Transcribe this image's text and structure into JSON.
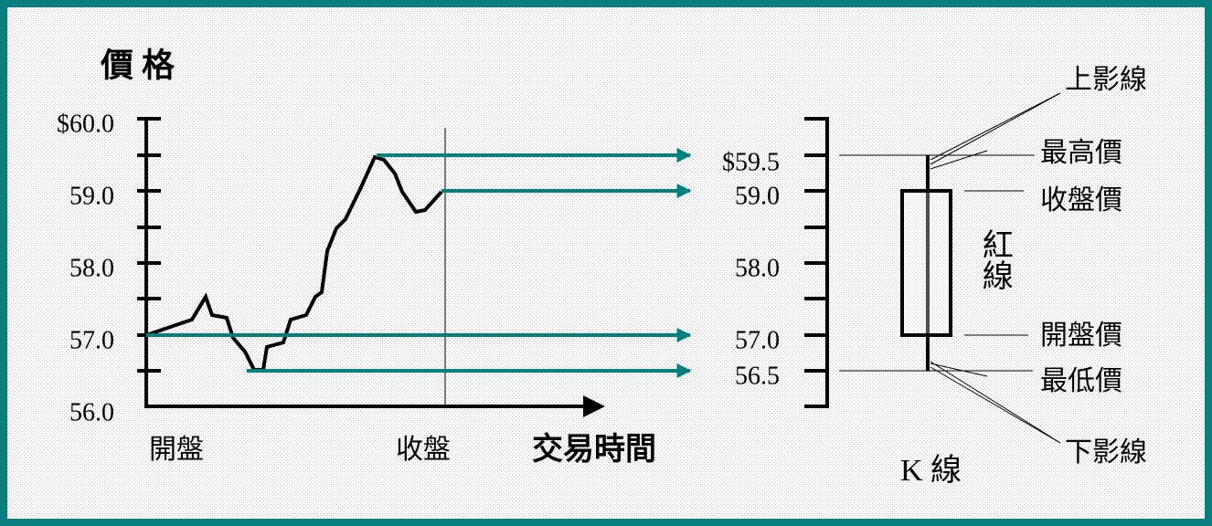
{
  "title": "價 格",
  "left_axis": {
    "ticks": [
      "$60.0",
      "59.0",
      "58.0",
      "57.0",
      "56.0"
    ]
  },
  "x_labels": {
    "open": "開盤",
    "close": "收盤",
    "axis": "交易時間"
  },
  "right_axis": {
    "ticks": [
      "$59.5",
      "59.0",
      "58.0",
      "57.0",
      "56.5"
    ]
  },
  "candle": {
    "upper_shadow": "上影線",
    "high": "最高價",
    "close": "收盤價",
    "body": "紅線",
    "open": "開盤價",
    "low": "最低價",
    "lower_shadow": "下影線",
    "title": "K 線"
  }
}
